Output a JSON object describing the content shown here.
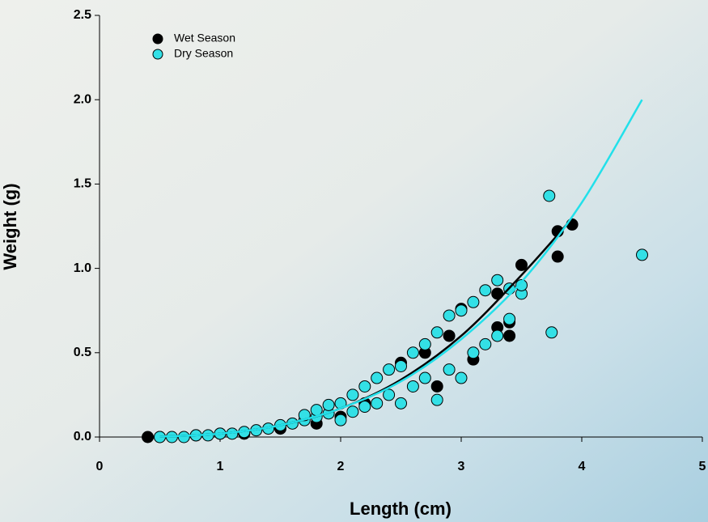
{
  "chart_data": {
    "type": "scatter",
    "x_label": "Length (cm)",
    "y_label": "Weight (g)",
    "xlim": [
      0,
      5
    ],
    "ylim": [
      0,
      2.5
    ],
    "xticks": [
      0,
      1,
      2,
      3,
      4,
      5
    ],
    "yticks": [
      {
        "value": 0,
        "label": "0.0"
      },
      {
        "value": 0.5,
        "label": "0.5"
      },
      {
        "value": 1,
        "label": "1.0"
      },
      {
        "value": 1.5,
        "label": "1.5"
      },
      {
        "value": 2,
        "label": "2.0"
      },
      {
        "value": 2.5,
        "label": "2.5"
      }
    ],
    "legend": "top-left",
    "series": [
      {
        "name": "Wet Season",
        "color": "#000000",
        "line_color": "#000000",
        "x": [
          0.4,
          0.5,
          0.8,
          1.0,
          1.2,
          1.5,
          1.8,
          2.0,
          2.2,
          2.5,
          2.7,
          2.9,
          3.0,
          3.1,
          3.3,
          3.4,
          3.4,
          3.5,
          3.8,
          3.8,
          3.92,
          3.3,
          2.8
        ],
        "y": [
          0,
          0,
          0.01,
          0.02,
          0.02,
          0.05,
          0.08,
          0.12,
          0.2,
          0.44,
          0.5,
          0.6,
          0.76,
          0.46,
          0.65,
          0.6,
          0.68,
          1.02,
          1.22,
          1.07,
          1.26,
          0.85,
          0.3
        ],
        "fit_x": [
          0.5,
          1,
          1.5,
          2,
          2.5,
          3,
          3.5,
          3.9
        ],
        "fit_y": [
          0.002,
          0.02,
          0.07,
          0.17,
          0.34,
          0.6,
          0.96,
          1.28
        ]
      },
      {
        "name": "Dry Season",
        "color": "#33e0e6",
        "line_color": "#22e0ea",
        "x": [
          0.5,
          0.6,
          0.7,
          0.8,
          0.9,
          1.0,
          1.1,
          1.2,
          1.3,
          1.4,
          1.5,
          1.6,
          1.7,
          1.7,
          1.8,
          1.8,
          1.9,
          1.9,
          2.0,
          2.0,
          2.1,
          2.1,
          2.2,
          2.2,
          2.3,
          2.3,
          2.4,
          2.4,
          2.5,
          2.5,
          2.6,
          2.6,
          2.7,
          2.7,
          2.8,
          2.8,
          2.9,
          2.9,
          3.0,
          3.0,
          3.1,
          3.1,
          3.2,
          3.2,
          3.3,
          3.3,
          3.4,
          3.4,
          3.5,
          3.5,
          3.73,
          3.75,
          4.5
        ],
        "y": [
          0,
          0,
          0,
          0.01,
          0.01,
          0.02,
          0.02,
          0.03,
          0.04,
          0.05,
          0.07,
          0.08,
          0.1,
          0.13,
          0.12,
          0.16,
          0.14,
          0.19,
          0.1,
          0.2,
          0.15,
          0.25,
          0.18,
          0.3,
          0.2,
          0.35,
          0.25,
          0.4,
          0.2,
          0.42,
          0.3,
          0.5,
          0.35,
          0.55,
          0.22,
          0.62,
          0.4,
          0.72,
          0.35,
          0.75,
          0.5,
          0.8,
          0.55,
          0.87,
          0.6,
          0.93,
          0.7,
          0.88,
          0.85,
          0.9,
          1.43,
          0.62,
          1.08
        ],
        "fit_x": [
          0.5,
          1,
          1.5,
          2,
          2.5,
          3,
          3.5,
          4,
          4.5
        ],
        "fit_y": [
          0.002,
          0.02,
          0.07,
          0.17,
          0.33,
          0.58,
          0.92,
          1.39,
          2.0
        ]
      }
    ]
  }
}
